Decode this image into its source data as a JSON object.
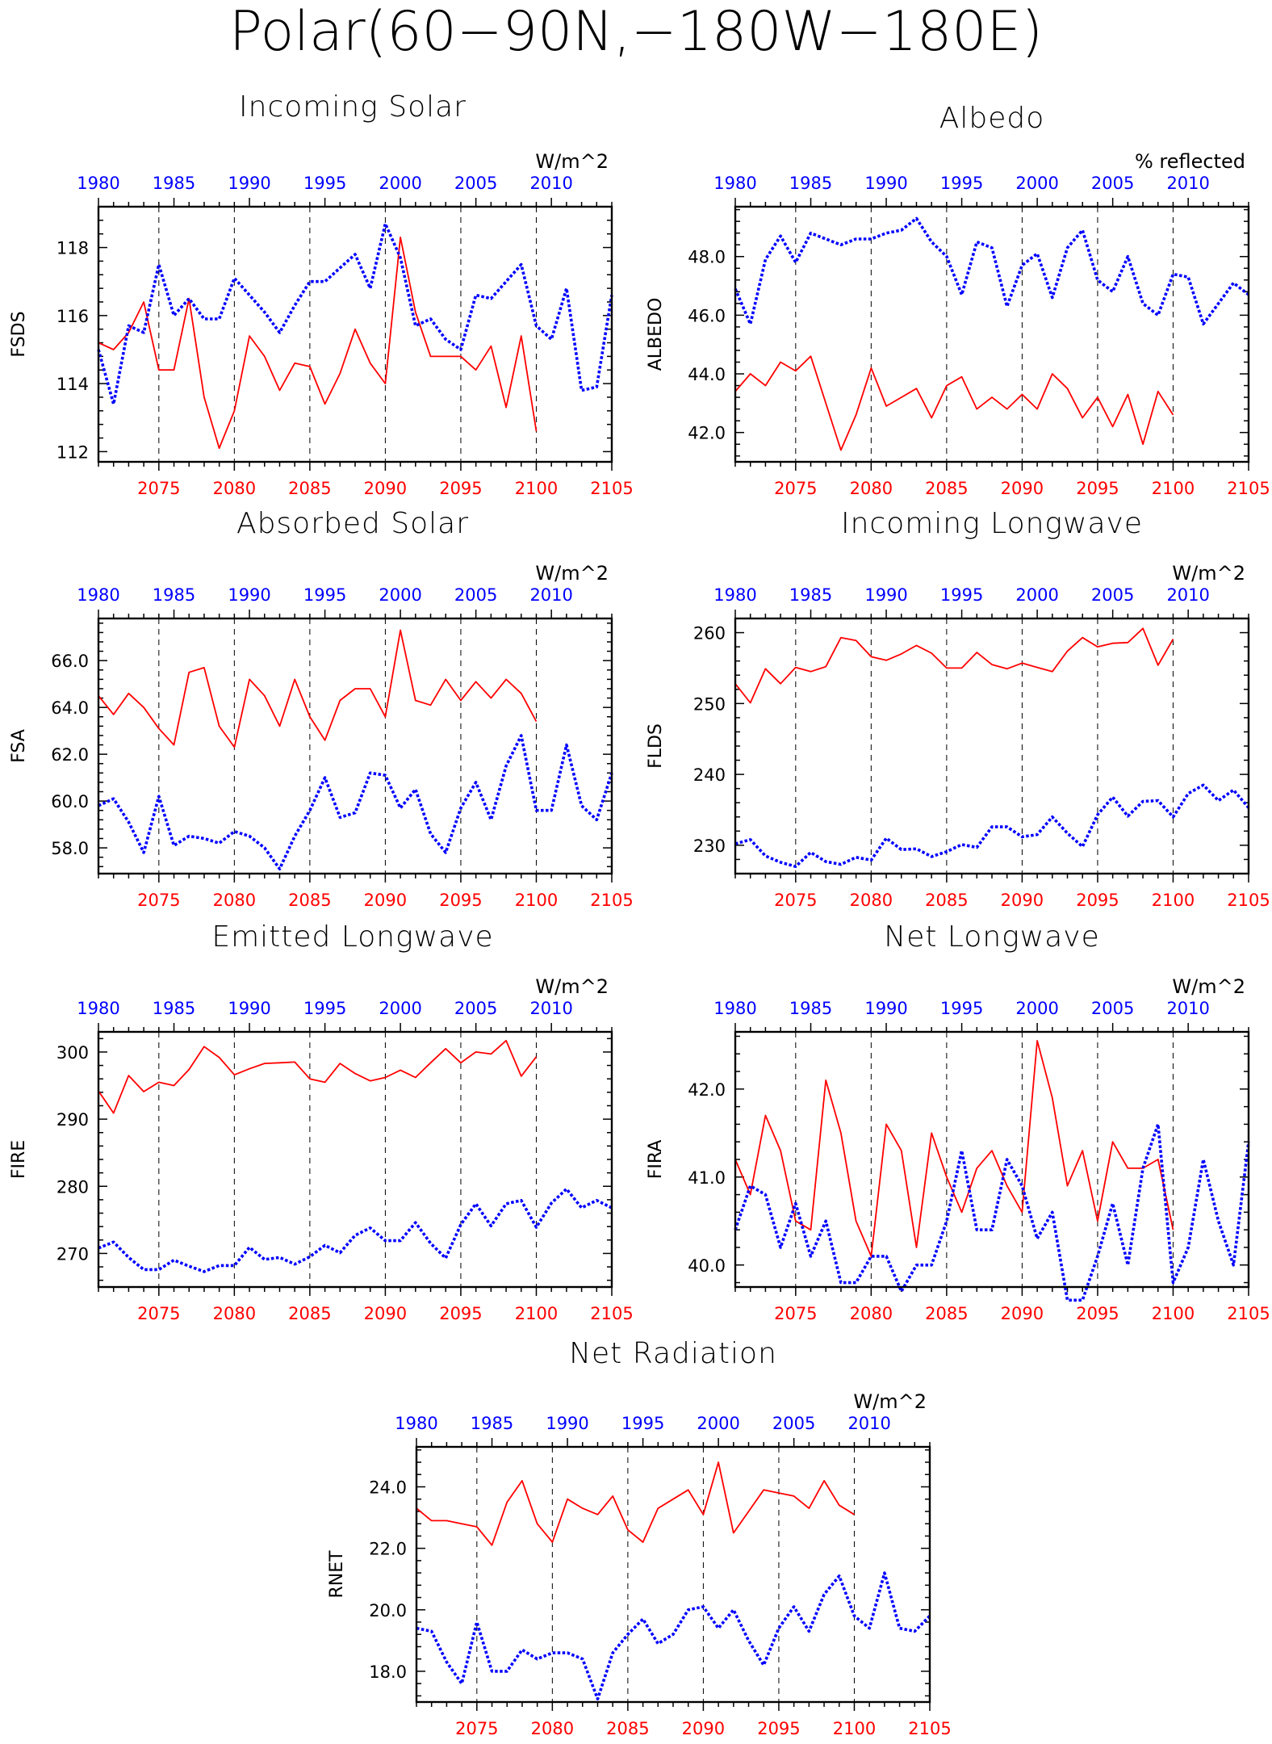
{
  "figure_title": "Polar(60−90N,−180W−180E)",
  "colors": {
    "future": "#ff0000",
    "historical": "#0000ff",
    "axes": "#000000"
  },
  "chart_data": [
    {
      "type": "line",
      "title": "Incoming Solar",
      "ylabel": "FSDS",
      "units": "W/m^2",
      "ylim": [
        111.7,
        119.2
      ],
      "yticks": [
        112,
        114,
        116,
        118
      ],
      "ytick_labels": [
        "112",
        "114",
        "116",
        "118"
      ],
      "x_bottom": {
        "range": [
          2071,
          2105
        ],
        "ticks": [
          2075,
          2080,
          2085,
          2090,
          2095,
          2100,
          2105
        ]
      },
      "x_top": {
        "range": [
          1980,
          2014
        ],
        "ticks": [
          1980,
          1985,
          1990,
          1995,
          2000,
          2005,
          2010
        ]
      },
      "grid_x": [
        2075,
        2080,
        2085,
        2090,
        2095,
        2100
      ],
      "series": [
        {
          "x_axis": "bottom",
          "style": "solid",
          "x_start": 2071,
          "values": [
            115.2,
            115.0,
            115.5,
            116.4,
            114.4,
            114.4,
            116.5,
            113.6,
            112.1,
            113.2,
            115.4,
            114.8,
            113.8,
            114.6,
            114.5,
            113.4,
            114.3,
            115.6,
            114.6,
            114.0,
            118.3,
            116.1,
            114.8,
            114.8,
            114.8,
            114.4,
            115.1,
            113.3,
            115.4,
            112.6
          ]
        },
        {
          "x_axis": "top",
          "style": "dotted",
          "x_start": 1980,
          "values": [
            115.0,
            113.4,
            115.7,
            115.5,
            117.5,
            116.0,
            116.5,
            115.9,
            115.9,
            117.1,
            116.6,
            116.1,
            115.5,
            116.3,
            117.0,
            117.0,
            117.4,
            117.8,
            116.8,
            118.7,
            117.7,
            115.7,
            115.9,
            115.3,
            115.0,
            116.6,
            116.5,
            117.0,
            117.5,
            115.7,
            115.3,
            116.8,
            113.8,
            113.9,
            116.6
          ]
        }
      ]
    },
    {
      "type": "line",
      "title": "Albedo",
      "ylabel": "ALBEDO",
      "units": "% reflected",
      "ylim": [
        41.0,
        49.7
      ],
      "yticks": [
        42,
        44,
        46,
        48
      ],
      "ytick_labels": [
        "42.0",
        "44.0",
        "46.0",
        "48.0"
      ],
      "x_bottom": {
        "range": [
          2071,
          2105
        ],
        "ticks": [
          2075,
          2080,
          2085,
          2090,
          2095,
          2100,
          2105
        ]
      },
      "x_top": {
        "range": [
          1980,
          2014
        ],
        "ticks": [
          1980,
          1985,
          1990,
          1995,
          2000,
          2005,
          2010
        ]
      },
      "grid_x": [
        2075,
        2080,
        2085,
        2090,
        2095,
        2100
      ],
      "series": [
        {
          "x_axis": "bottom",
          "style": "solid",
          "x_start": 2071,
          "values": [
            43.4,
            44.0,
            43.6,
            44.4,
            44.1,
            44.6,
            43.0,
            41.4,
            42.6,
            44.2,
            42.9,
            43.2,
            43.5,
            42.5,
            43.6,
            43.9,
            42.8,
            43.2,
            42.8,
            43.3,
            42.8,
            44.0,
            43.5,
            42.5,
            43.2,
            42.2,
            43.3,
            41.6,
            43.4,
            42.6
          ]
        },
        {
          "x_axis": "top",
          "style": "dotted",
          "x_start": 1980,
          "values": [
            46.9,
            45.7,
            47.9,
            48.7,
            47.8,
            48.8,
            48.6,
            48.4,
            48.6,
            48.6,
            48.8,
            48.9,
            49.3,
            48.5,
            48.0,
            46.7,
            48.5,
            48.3,
            46.3,
            47.7,
            48.1,
            46.6,
            48.3,
            48.9,
            47.2,
            46.8,
            48.0,
            46.4,
            46.0,
            47.4,
            47.3,
            45.7,
            46.4,
            47.1,
            46.7
          ]
        }
      ]
    },
    {
      "type": "line",
      "title": "Absorbed Solar",
      "ylabel": "FSA",
      "units": "W/m^2",
      "ylim": [
        56.9,
        67.8
      ],
      "yticks": [
        58,
        60,
        62,
        64,
        66
      ],
      "ytick_labels": [
        "58.0",
        "60.0",
        "62.0",
        "64.0",
        "66.0"
      ],
      "x_bottom": {
        "range": [
          2071,
          2105
        ],
        "ticks": [
          2075,
          2080,
          2085,
          2090,
          2095,
          2100,
          2105
        ]
      },
      "x_top": {
        "range": [
          1980,
          2014
        ],
        "ticks": [
          1980,
          1985,
          1990,
          1995,
          2000,
          2005,
          2010
        ]
      },
      "grid_x": [
        2075,
        2080,
        2085,
        2090,
        2095,
        2100
      ],
      "series": [
        {
          "x_axis": "bottom",
          "style": "solid",
          "x_start": 2071,
          "values": [
            64.5,
            63.7,
            64.6,
            64.0,
            63.1,
            62.4,
            65.5,
            65.7,
            63.2,
            62.3,
            65.2,
            64.5,
            63.2,
            65.2,
            63.6,
            62.6,
            64.3,
            64.8,
            64.8,
            63.6,
            67.3,
            64.3,
            64.1,
            65.2,
            64.3,
            65.1,
            64.4,
            65.2,
            64.6,
            63.4
          ]
        },
        {
          "x_axis": "top",
          "style": "dotted",
          "x_start": 1980,
          "values": [
            59.8,
            60.1,
            59.1,
            57.8,
            60.2,
            58.1,
            58.5,
            58.4,
            58.2,
            58.7,
            58.5,
            58.0,
            57.1,
            58.5,
            59.6,
            61.0,
            59.3,
            59.5,
            61.2,
            61.1,
            59.7,
            60.5,
            58.6,
            57.8,
            59.7,
            60.8,
            59.2,
            61.5,
            62.8,
            59.6,
            59.6,
            62.4,
            59.8,
            59.2,
            61.2
          ]
        }
      ]
    },
    {
      "type": "line",
      "title": "Incoming Longwave",
      "ylabel": "FLDS",
      "units": "W/m^2",
      "ylim": [
        226,
        262
      ],
      "yticks": [
        230,
        240,
        250,
        260
      ],
      "ytick_labels": [
        "230",
        "240",
        "250",
        "260"
      ],
      "x_bottom": {
        "range": [
          2071,
          2105
        ],
        "ticks": [
          2075,
          2080,
          2085,
          2090,
          2095,
          2100,
          2105
        ]
      },
      "x_top": {
        "range": [
          1980,
          2014
        ],
        "ticks": [
          1980,
          1985,
          1990,
          1995,
          2000,
          2005,
          2010
        ]
      },
      "grid_x": [
        2075,
        2080,
        2085,
        2090,
        2095,
        2100
      ],
      "series": [
        {
          "x_axis": "bottom",
          "style": "solid",
          "x_start": 2071,
          "values": [
            252.8,
            250.1,
            254.9,
            252.8,
            255.1,
            254.5,
            255.2,
            259.3,
            258.9,
            256.6,
            256.1,
            257.0,
            258.2,
            257.1,
            255.0,
            255.0,
            257.2,
            255.5,
            254.9,
            255.7,
            255.1,
            254.5,
            257.4,
            259.3,
            258.0,
            258.5,
            258.6,
            260.6,
            255.4,
            259.1
          ]
        },
        {
          "x_axis": "top",
          "style": "dotted",
          "x_start": 1980,
          "values": [
            230.2,
            230.8,
            228.5,
            227.6,
            227.0,
            229.0,
            227.7,
            227.3,
            228.3,
            227.9,
            231.0,
            229.4,
            229.5,
            228.4,
            229.1,
            230.1,
            229.7,
            232.6,
            232.6,
            231.2,
            231.5,
            234.0,
            231.7,
            229.8,
            234.3,
            236.8,
            234.1,
            236.2,
            236.3,
            234.0,
            237.3,
            238.5,
            236.3,
            237.8,
            235.3
          ]
        }
      ]
    },
    {
      "type": "line",
      "title": "Emitted Longwave",
      "ylabel": "FIRE",
      "units": "W/m^2",
      "ylim": [
        265,
        303
      ],
      "yticks": [
        270,
        280,
        290,
        300
      ],
      "ytick_labels": [
        "270",
        "280",
        "290",
        "300"
      ],
      "x_bottom": {
        "range": [
          2071,
          2105
        ],
        "ticks": [
          2075,
          2080,
          2085,
          2090,
          2095,
          2100,
          2105
        ]
      },
      "x_top": {
        "range": [
          1980,
          2014
        ],
        "ticks": [
          1980,
          1985,
          1990,
          1995,
          2000,
          2005,
          2010
        ]
      },
      "grid_x": [
        2075,
        2080,
        2085,
        2090,
        2095,
        2100
      ],
      "series": [
        {
          "x_axis": "bottom",
          "style": "solid",
          "x_start": 2071,
          "values": [
            294.2,
            290.9,
            296.5,
            294.1,
            295.5,
            295.0,
            297.4,
            300.8,
            299.2,
            296.6,
            297.5,
            298.3,
            298.4,
            298.5,
            296.0,
            295.5,
            298.3,
            296.8,
            295.7,
            296.2,
            297.3,
            296.2,
            298.4,
            300.5,
            298.4,
            300.0,
            299.7,
            301.7,
            296.4,
            299.3
          ]
        },
        {
          "x_axis": "top",
          "style": "dotted",
          "x_start": 1980,
          "values": [
            270.8,
            271.7,
            269.4,
            267.6,
            267.6,
            269.0,
            268.1,
            267.3,
            268.2,
            268.2,
            270.9,
            269.1,
            269.4,
            268.4,
            269.5,
            271.2,
            270.1,
            272.7,
            273.8,
            271.9,
            271.9,
            274.6,
            271.5,
            269.3,
            274.3,
            277.4,
            274.1,
            277.4,
            277.9,
            273.9,
            277.5,
            279.6,
            276.8,
            277.9,
            276.8
          ]
        }
      ]
    },
    {
      "type": "line",
      "title": "Net Longwave",
      "ylabel": "FIRA",
      "units": "W/m^2",
      "ylim": [
        39.75,
        42.65
      ],
      "yticks": [
        40,
        41,
        42
      ],
      "ytick_labels": [
        "40.0",
        "41.0",
        "42.0"
      ],
      "x_bottom": {
        "range": [
          2071,
          2105
        ],
        "ticks": [
          2075,
          2080,
          2085,
          2090,
          2095,
          2100,
          2105
        ]
      },
      "x_top": {
        "range": [
          1980,
          2014
        ],
        "ticks": [
          1980,
          1985,
          1990,
          1995,
          2000,
          2005,
          2010
        ]
      },
      "grid_x": [
        2075,
        2080,
        2085,
        2090,
        2095,
        2100
      ],
      "series": [
        {
          "x_axis": "bottom",
          "style": "solid",
          "x_start": 2071,
          "values": [
            41.2,
            40.8,
            41.7,
            41.3,
            40.5,
            40.4,
            42.1,
            41.5,
            40.5,
            40.1,
            41.6,
            41.3,
            40.2,
            41.5,
            41.0,
            40.6,
            41.1,
            41.3,
            40.9,
            40.6,
            42.55,
            41.9,
            40.9,
            41.3,
            40.5,
            41.4,
            41.1,
            41.1,
            41.2,
            40.4
          ]
        },
        {
          "x_axis": "top",
          "style": "dotted",
          "x_start": 1980,
          "values": [
            40.4,
            40.9,
            40.8,
            40.2,
            40.7,
            40.1,
            40.5,
            39.8,
            39.8,
            40.1,
            40.1,
            39.7,
            40.0,
            40.0,
            40.5,
            41.3,
            40.4,
            40.4,
            41.2,
            40.9,
            40.3,
            40.6,
            39.6,
            39.6,
            40.1,
            40.7,
            40.0,
            41.1,
            41.6,
            39.8,
            40.2,
            41.2,
            40.5,
            40.0,
            41.4
          ]
        }
      ]
    },
    {
      "type": "line",
      "title": "Net Radiation",
      "ylabel": "RNET",
      "units": "W/m^2",
      "ylim": [
        17.0,
        25.3
      ],
      "yticks": [
        18,
        20,
        22,
        24
      ],
      "ytick_labels": [
        "18.0",
        "20.0",
        "22.0",
        "24.0"
      ],
      "x_bottom": {
        "range": [
          2071,
          2105
        ],
        "ticks": [
          2075,
          2080,
          2085,
          2090,
          2095,
          2100,
          2105
        ]
      },
      "x_top": {
        "range": [
          1980,
          2014
        ],
        "ticks": [
          1980,
          1985,
          1990,
          1995,
          2000,
          2005,
          2010
        ]
      },
      "grid_x": [
        2075,
        2080,
        2085,
        2090,
        2095,
        2100
      ],
      "series": [
        {
          "x_axis": "bottom",
          "style": "solid",
          "x_start": 2071,
          "values": [
            23.3,
            22.9,
            22.9,
            22.8,
            22.7,
            22.1,
            23.5,
            24.2,
            22.8,
            22.2,
            23.6,
            23.3,
            23.1,
            23.7,
            22.6,
            22.2,
            23.3,
            23.6,
            23.9,
            23.1,
            24.8,
            22.5,
            23.2,
            23.9,
            23.8,
            23.7,
            23.3,
            24.2,
            23.4,
            23.1
          ]
        },
        {
          "x_axis": "top",
          "style": "dotted",
          "x_start": 1980,
          "values": [
            19.4,
            19.3,
            18.3,
            17.6,
            19.6,
            18.0,
            18.0,
            18.7,
            18.4,
            18.6,
            18.6,
            18.4,
            17.1,
            18.6,
            19.2,
            19.7,
            18.9,
            19.2,
            20.0,
            20.1,
            19.4,
            20.0,
            19.0,
            18.2,
            19.4,
            20.1,
            19.3,
            20.5,
            21.1,
            19.8,
            19.4,
            21.2,
            19.4,
            19.3,
            19.8
          ]
        }
      ]
    }
  ]
}
